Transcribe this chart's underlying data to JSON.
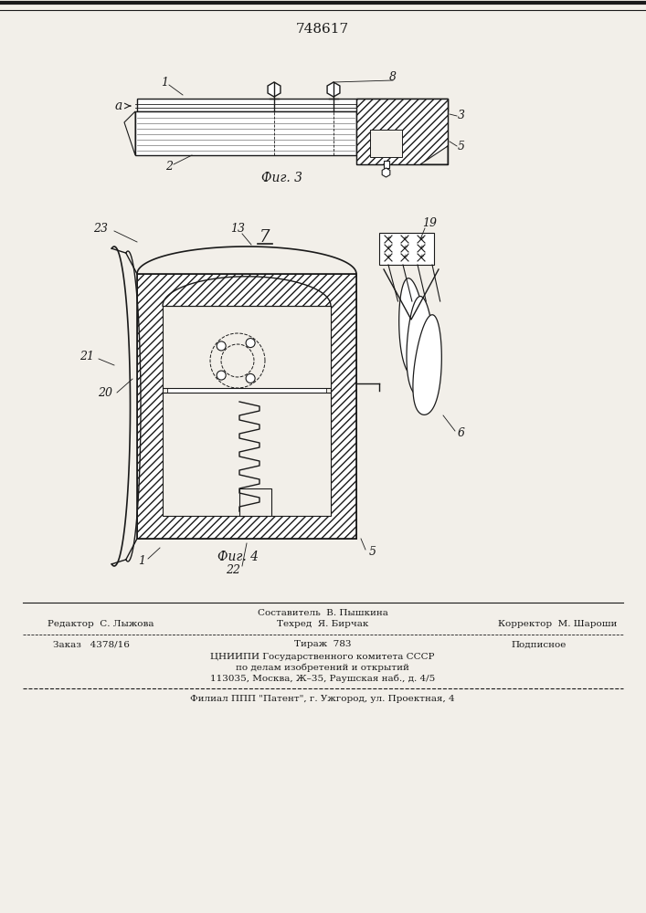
{
  "patent_number": "748617",
  "fig3_label": "Фиг. 3",
  "fig4_label": "Фиг. 4",
  "fig7_label": "7",
  "editor_line": "Редактор  С. Лыжова",
  "composer_line1": "Составитель  В. Пышкина",
  "composer_line2": "Техред  Я. Бирчак",
  "corrector_line": "Корректор  М. Шароши",
  "order_line": "Заказ   4378/16",
  "tirazh_line": "Тираж  783",
  "podpisnoe_line": "Подписное",
  "org_line1": "ЦНИИПИ Государственного комитета СССР",
  "org_line2": "по делам изобретений и открытий",
  "org_line3": "113035, Москва, Ж–35, Раушская наб., д. 4/5",
  "filial_line": "Филиал ППП \"Патент\", г. Ужгород, ул. Проектная, 4",
  "bg_color": "#f2efe9",
  "line_color": "#1a1a1a",
  "text_color": "#1a1a1a"
}
